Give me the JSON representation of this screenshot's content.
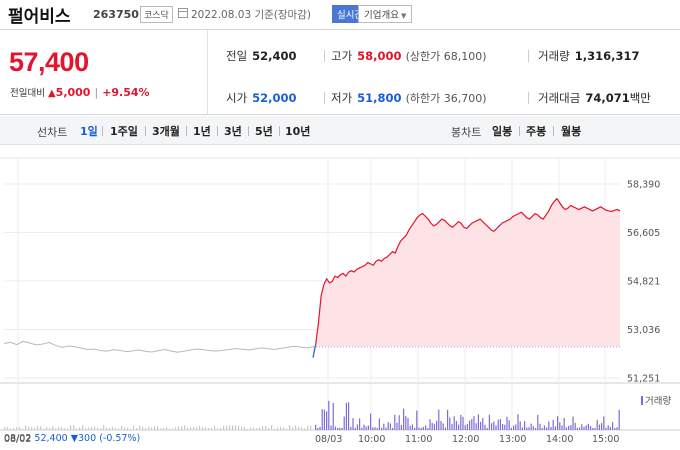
{
  "header": {
    "stock_name": "펄어비스",
    "stock_code": "263750",
    "market": "코스닥",
    "date_text": "2022.08.03 기준(장마감)",
    "realtime_label": "실시간",
    "company_label": "기업개요"
  },
  "price": {
    "current": "57,400",
    "change_label": "전일대비",
    "change_symbol": "▲",
    "change_amount": "5,000",
    "change_percent": "+9.54%"
  },
  "stats": {
    "prev_close": {
      "label": "전일",
      "value": "52,400"
    },
    "high": {
      "label": "고가",
      "value": "58,000",
      "sub": "(상한가 68,100)"
    },
    "volume": {
      "label": "거래량",
      "value": "1,316,317"
    },
    "open": {
      "label": "시가",
      "value": "52,000"
    },
    "low": {
      "label": "저가",
      "value": "51,800",
      "sub": "(하한가 36,700)"
    },
    "trade_value": {
      "label": "거래대금",
      "value": "74,071",
      "unit": "백만"
    }
  },
  "toolbar": {
    "line_chart_label": "선차트",
    "line_periods": [
      "1일",
      "1주일",
      "3개월",
      "1년",
      "3년",
      "5년",
      "10년"
    ],
    "candle_chart_label": "봉차트",
    "candle_periods": [
      "일봉",
      "주봉",
      "월봉"
    ]
  },
  "chart_data": {
    "type": "line",
    "y_ticks": [
      "58,390",
      "56,605",
      "54,821",
      "53,036",
      "51,251"
    ],
    "ylim": [
      51251,
      58390
    ],
    "reference_price": 52400,
    "x_ticks": [
      "08/02",
      "08/03",
      "10:00",
      "11:00",
      "12:00",
      "13:00",
      "14:00",
      "15:00"
    ],
    "prev_day_series": {
      "name": "08/02",
      "values": [
        52520,
        52560,
        52480,
        52600,
        52540,
        52470,
        52500,
        52560,
        52450,
        52380,
        52430,
        52400,
        52350,
        52300,
        52320,
        52260,
        52240,
        52290,
        52270,
        52220,
        52250,
        52280,
        52230,
        52210,
        52260,
        52300,
        52240,
        52200,
        52240,
        52280,
        52320,
        52290,
        52260,
        52240,
        52270,
        52300,
        52330,
        52310,
        52280,
        52320,
        52360,
        52330,
        52300,
        52340,
        52380,
        52420,
        52390,
        52360,
        52400
      ]
    },
    "today_series": {
      "name": "08/03",
      "time_start": "09:00",
      "time_end": "15:30",
      "values": [
        52000,
        52500,
        53300,
        54300,
        54700,
        54900,
        54750,
        54800,
        55000,
        54950,
        55050,
        55100,
        55000,
        55150,
        55200,
        55150,
        55250,
        55300,
        55350,
        55400,
        55500,
        55450,
        55400,
        55550,
        55600,
        55550,
        55650,
        55700,
        55800,
        55900,
        55850,
        56100,
        56300,
        56400,
        56500,
        56700,
        56850,
        57000,
        57150,
        57250,
        57300,
        57200,
        57100,
        56950,
        56850,
        56900,
        57000,
        57100,
        57050,
        56950,
        56850,
        56800,
        56900,
        57000,
        56950,
        56800,
        56750,
        56850,
        56950,
        57000,
        57050,
        57100,
        57000,
        56900,
        56800,
        56700,
        56650,
        56750,
        56850,
        56950,
        57000,
        57050,
        57100,
        57200,
        57250,
        57300,
        57350,
        57250,
        57150,
        57100,
        57200,
        57300,
        57250,
        57150,
        57100,
        57250,
        57400,
        57600,
        57750,
        57850,
        57700,
        57550,
        57450,
        57500,
        57600,
        57550,
        57500,
        57450,
        57500,
        57550,
        57500,
        57450,
        57400,
        57450,
        57500,
        57550,
        57480,
        57420,
        57400,
        57380,
        57420,
        57450,
        57400
      ]
    },
    "volume_label": "거래량"
  },
  "footer": {
    "prev_date": "08/02",
    "prev_value": "52,400",
    "prev_change": "▼300",
    "prev_pct": "(-0.57%)"
  },
  "colors": {
    "up": "#e2152d",
    "down": "#1a5ed6",
    "area_fill": "#fde3e6",
    "prev_line": "#b9b9b9",
    "volume_bar": "#7b6cd9"
  }
}
